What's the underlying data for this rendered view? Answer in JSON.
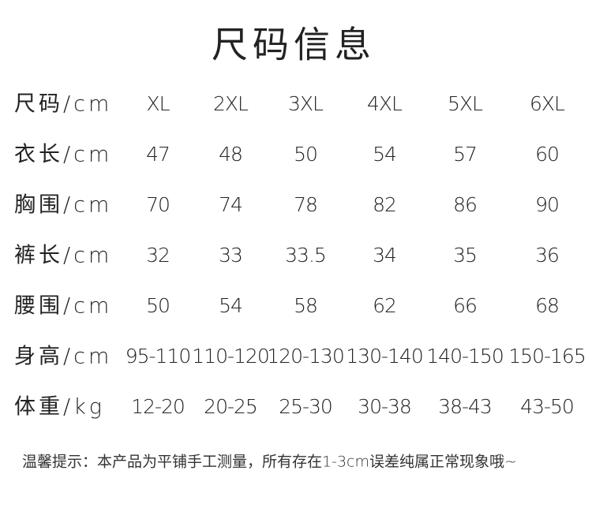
{
  "title": "尺码信息",
  "table": {
    "header": [
      "尺码/cm",
      "XL",
      "2XL",
      "3XL",
      "4XL",
      "5XL",
      "6XL"
    ],
    "rows": [
      [
        "衣长/cm",
        "47",
        "48",
        "50",
        "54",
        "57",
        "60"
      ],
      [
        "胸围/cm",
        "70",
        "74",
        "78",
        "82",
        "86",
        "90"
      ],
      [
        "裤长/cm",
        "32",
        "33",
        "33.5",
        "34",
        "35",
        "36"
      ],
      [
        "腰围/cm",
        "50",
        "54",
        "58",
        "62",
        "66",
        "68"
      ],
      [
        "身高/cm",
        "95-110",
        "110-120",
        "120-130",
        "130-140",
        "140-150",
        "150-165"
      ],
      [
        "体重/kg",
        "12-20",
        "20-25",
        "25-30",
        "30-38",
        "38-43",
        "43-50"
      ]
    ]
  },
  "note": "温馨提示：本产品为平铺手工测量，所有存在1-3cm误差纯属正常现象哦~"
}
